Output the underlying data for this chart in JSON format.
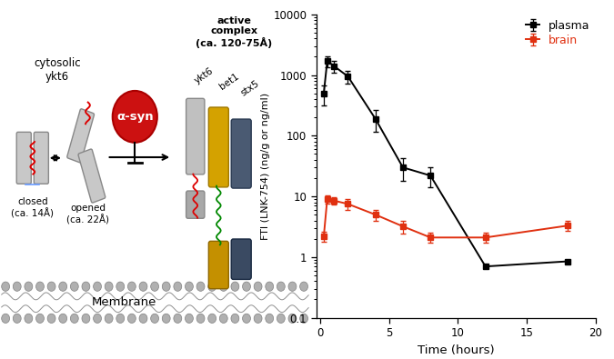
{
  "plasma_x": [
    0.25,
    0.5,
    1.0,
    2.0,
    4.0,
    6.0,
    8.0,
    12.0,
    18.0
  ],
  "plasma_y": [
    500,
    1700,
    1400,
    950,
    190,
    30,
    22,
    0.7,
    0.85
  ],
  "plasma_yerr_lo": [
    180,
    350,
    320,
    220,
    75,
    12,
    8,
    0.0,
    0.0
  ],
  "plasma_yerr_hi": [
    180,
    350,
    320,
    220,
    75,
    12,
    8,
    0.0,
    0.0
  ],
  "brain_x": [
    0.25,
    0.5,
    1.0,
    2.0,
    4.0,
    6.0,
    8.0,
    12.0,
    18.0
  ],
  "brain_y": [
    2.2,
    9.0,
    8.5,
    7.5,
    5.0,
    3.2,
    2.1,
    2.1,
    3.3
  ],
  "brain_yerr_lo": [
    0.4,
    1.5,
    1.2,
    1.5,
    1.0,
    0.8,
    0.4,
    0.4,
    0.6
  ],
  "brain_yerr_hi": [
    0.4,
    1.5,
    1.2,
    1.5,
    1.0,
    0.8,
    0.4,
    0.4,
    0.6
  ],
  "plasma_color": "#000000",
  "brain_color": "#e03010",
  "ylabel": "FTI (LNK-754) (ng/g or ng/ml)",
  "xlabel": "Time (hours)",
  "ylim_lo": 0.1,
  "ylim_hi": 10000,
  "xlim_lo": -0.3,
  "xlim_hi": 20,
  "legend_plasma": "plasma",
  "legend_brain": "brain",
  "bg_color": "#ffffff",
  "diagram_texts": {
    "cytosolic_ykt6": "cytosolic\nykt6",
    "closed": "closed\n(ca. 14Å)",
    "opened": "opened\n(ca. 22Å)",
    "alpha_syn": "α-syn",
    "active_complex": "active\ncomplex\n(ca. 120-75Å)",
    "ykt6": "ykt6",
    "bet1": "bet1",
    "stx5": "stx5",
    "membrane": "Membrane"
  }
}
